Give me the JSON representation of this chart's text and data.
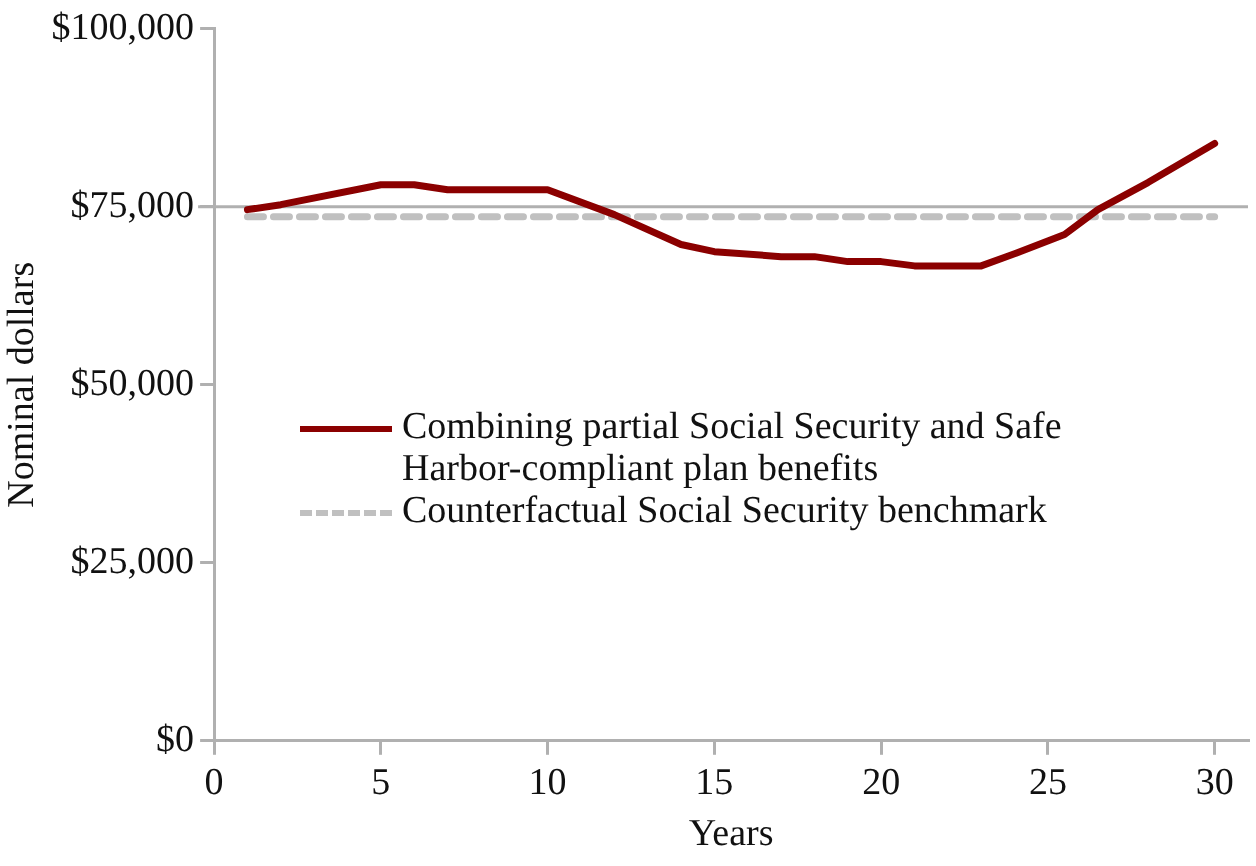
{
  "chart_data": {
    "type": "line",
    "xlabel": "Years",
    "ylabel": "Nominal dollars",
    "series": [
      {
        "name": "Combining partial Social Security and Safe Harbor-compliant plan benefits",
        "color": "#8b0000",
        "x": [
          1,
          2,
          5,
          6,
          7,
          10,
          12,
          14,
          15,
          17,
          18,
          19,
          20,
          21,
          23,
          24,
          25.5,
          26.5,
          28,
          30
        ],
        "values": [
          74600,
          75300,
          78100,
          78100,
          77400,
          77400,
          73900,
          69700,
          68700,
          68000,
          68000,
          67300,
          67300,
          66700,
          66700,
          68400,
          71100,
          74600,
          78400,
          83900
        ]
      },
      {
        "name": "Counterfactual Social Security benchmark",
        "color": "#c0c0c0",
        "line_style": "dashed",
        "x": [
          1,
          30
        ],
        "values": [
          73600,
          73600
        ]
      }
    ],
    "xlim": [
      0,
      31
    ],
    "xticks": [
      0,
      5,
      10,
      15,
      20,
      25,
      30
    ],
    "ylim": [
      0,
      100000
    ],
    "yticks": [
      {
        "value": 0,
        "label": "$0"
      },
      {
        "value": 25000,
        "label": "$25,000"
      },
      {
        "value": 50000,
        "label": "$50,000"
      },
      {
        "value": 75000,
        "label": "$75,000"
      },
      {
        "value": 100000,
        "label": "$100,000"
      }
    ],
    "ref_lines": [
      {
        "axis": "y",
        "value": 75000,
        "color": "#b0b0b0"
      }
    ],
    "grid": false,
    "legend": "left",
    "marker": "none"
  }
}
